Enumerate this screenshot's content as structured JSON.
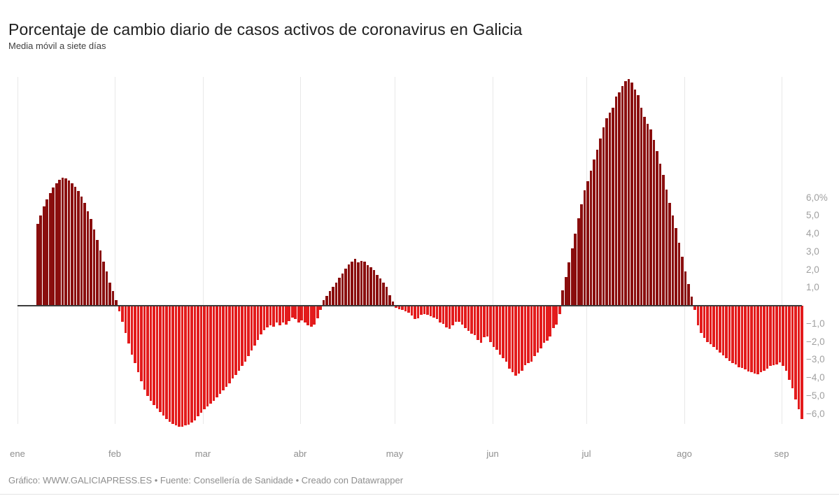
{
  "header": {
    "title": "Porcentaje de cambio diario de casos activos de coronavirus en Galicia",
    "subtitle": "Media móvil a siete días"
  },
  "footer": {
    "text": "Gráfico: WWW.GALICIAPRESS.ES • Fuente: Consellería de Sanidade • Creado con Datawrapper"
  },
  "chart_data": {
    "type": "bar",
    "title": "Porcentaje de cambio diario de casos activos de coronavirus en Galicia",
    "subtitle": "Media móvil a siete días",
    "unit": "%",
    "grid": true,
    "zero_line": true,
    "legend": "none",
    "colors": {
      "positive_bar": "#8a0e0e",
      "negative_bar": "#e31b1c",
      "zero_line": "#3c3c3c"
    },
    "x_axis": {
      "months": [
        "ene",
        "feb",
        "mar",
        "abr",
        "may",
        "jun",
        "jul",
        "ago",
        "sep"
      ],
      "month_day_offsets": [
        0,
        31,
        59,
        90,
        120,
        151,
        181,
        212,
        243
      ],
      "series_first_day": 7
    },
    "y_axis": {
      "label_side": "right",
      "ticks": [
        {
          "value": 6,
          "label": "6,0%"
        },
        {
          "value": 5,
          "label": "5,0"
        },
        {
          "value": 4,
          "label": "4,0"
        },
        {
          "value": 3,
          "label": "3,0"
        },
        {
          "value": 2,
          "label": "2,0"
        },
        {
          "value": 1,
          "label": "1,0"
        },
        {
          "value": -1,
          "label": "−1,0"
        },
        {
          "value": -2,
          "label": "−2,0"
        },
        {
          "value": -3,
          "label": "−3,0"
        },
        {
          "value": -4,
          "label": "−4,0"
        },
        {
          "value": -5,
          "label": "−5,0"
        },
        {
          "value": -6,
          "label": "−6,0"
        }
      ],
      "data_range_shown": [
        -6.7,
        12.6
      ]
    },
    "values": [
      4.55,
      5.0,
      5.5,
      5.9,
      6.25,
      6.55,
      6.8,
      7.0,
      7.1,
      7.05,
      6.95,
      6.8,
      6.6,
      6.35,
      6.05,
      5.7,
      5.25,
      4.8,
      4.25,
      3.65,
      3.05,
      2.45,
      1.9,
      1.3,
      0.8,
      0.3,
      -0.3,
      -0.9,
      -1.5,
      -2.1,
      -2.7,
      -3.2,
      -3.7,
      -4.2,
      -4.65,
      -5.0,
      -5.3,
      -5.5,
      -5.7,
      -5.9,
      -6.1,
      -6.3,
      -6.45,
      -6.55,
      -6.65,
      -6.7,
      -6.7,
      -6.65,
      -6.6,
      -6.5,
      -6.35,
      -6.15,
      -5.95,
      -5.75,
      -5.6,
      -5.45,
      -5.3,
      -5.1,
      -4.9,
      -4.7,
      -4.5,
      -4.3,
      -4.05,
      -3.85,
      -3.6,
      -3.35,
      -3.1,
      -2.8,
      -2.5,
      -2.2,
      -1.9,
      -1.6,
      -1.35,
      -1.2,
      -1.1,
      -1.15,
      -0.95,
      -1.1,
      -0.95,
      -1.05,
      -0.85,
      -0.65,
      -0.75,
      -0.95,
      -0.8,
      -0.95,
      -1.1,
      -1.15,
      -1.05,
      -0.7,
      -0.25,
      0.3,
      0.55,
      0.8,
      1.05,
      1.3,
      1.55,
      1.8,
      2.05,
      2.3,
      2.45,
      2.6,
      2.4,
      2.5,
      2.45,
      2.25,
      2.15,
      2.0,
      1.7,
      1.5,
      1.3,
      1.05,
      0.6,
      0.25,
      -0.1,
      -0.2,
      -0.25,
      -0.3,
      -0.4,
      -0.55,
      -0.75,
      -0.7,
      -0.5,
      -0.45,
      -0.5,
      -0.6,
      -0.65,
      -0.75,
      -0.95,
      -1.0,
      -1.2,
      -1.3,
      -1.1,
      -0.9,
      -0.9,
      -1.05,
      -1.25,
      -1.4,
      -1.55,
      -1.65,
      -1.9,
      -2.05,
      -1.75,
      -1.7,
      -2.0,
      -2.3,
      -2.45,
      -2.7,
      -2.9,
      -3.1,
      -3.5,
      -3.7,
      -3.9,
      -3.75,
      -3.6,
      -3.3,
      -3.2,
      -3.1,
      -2.8,
      -2.6,
      -2.35,
      -2.05,
      -1.95,
      -1.7,
      -1.25,
      -1.05,
      -0.45,
      0.85,
      1.6,
      2.4,
      3.2,
      4.0,
      4.85,
      5.65,
      6.4,
      6.9,
      7.5,
      8.1,
      8.65,
      9.3,
      9.9,
      10.4,
      10.7,
      11.0,
      11.6,
      11.85,
      12.2,
      12.45,
      12.6,
      12.4,
      12.0,
      11.7,
      11.0,
      10.5,
      10.1,
      9.8,
      9.2,
      8.6,
      7.9,
      7.25,
      6.45,
      5.7,
      5.0,
      4.3,
      3.5,
      2.7,
      1.9,
      1.2,
      0.5,
      -0.25,
      -1.1,
      -1.5,
      -1.8,
      -2.0,
      -2.15,
      -2.3,
      -2.45,
      -2.6,
      -2.75,
      -2.9,
      -3.05,
      -3.2,
      -3.25,
      -3.4,
      -3.45,
      -3.55,
      -3.65,
      -3.7,
      -3.75,
      -3.8,
      -3.7,
      -3.6,
      -3.5,
      -3.35,
      -3.3,
      -3.25,
      -3.15,
      -3.35,
      -3.6,
      -4.1,
      -4.6,
      -5.2,
      -5.75,
      -6.3
    ]
  }
}
